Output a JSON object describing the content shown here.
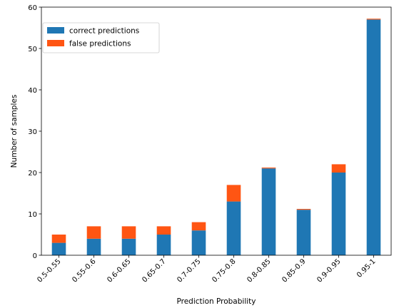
{
  "chart_data": {
    "type": "bar",
    "stacked": true,
    "categories": [
      "0.5-0.55",
      "0.55-0.6",
      "0.6-0.65",
      "0.65-0.7",
      "0.7-0.75",
      "0.75-0.8",
      "0.8-0.85",
      "0.85-0.9",
      "0.9-0.95",
      "0.95-1"
    ],
    "series": [
      {
        "name": "correct predictions",
        "color": "#1f77b4",
        "values": [
          3,
          4,
          4,
          5,
          6,
          13,
          21,
          11,
          20,
          57
        ]
      },
      {
        "name": "false predictions",
        "color": "#ff5513",
        "values": [
          2,
          3,
          3,
          2,
          2,
          4,
          0.2,
          0.2,
          2,
          0.2
        ]
      }
    ],
    "xlabel": "Prediction Probability",
    "ylabel": "Number of samples",
    "ylim": [
      0,
      60
    ],
    "yticks": [
      0,
      10,
      20,
      30,
      40,
      50,
      60
    ],
    "grid": false,
    "legend_position": "top-left"
  }
}
